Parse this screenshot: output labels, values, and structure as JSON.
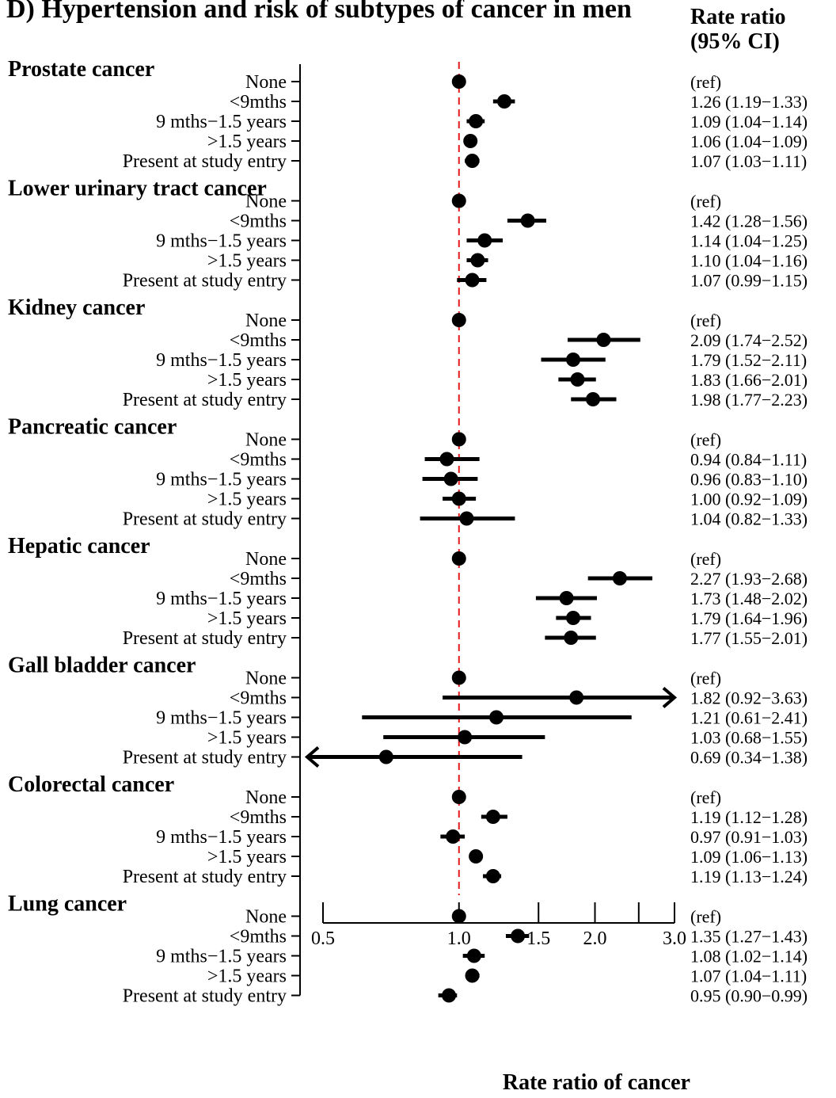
{
  "chart_data": {
    "type": "forest",
    "title": "D) Hypertension and risk of subtypes of cancer in men",
    "right_header": {
      "line1": "Rate ratio",
      "line2": "(95% CI)"
    },
    "xlabel": "Rate ratio of cancer",
    "x_scale": "log",
    "xlim": [
      0.5,
      3.0
    ],
    "xticks": [
      0.5,
      1.0,
      1.5,
      2.0,
      2.5,
      3.0
    ],
    "xtick_labels": [
      "0.5",
      "1.0",
      "1.5",
      "2.0",
      "",
      "3.0"
    ],
    "reference_line": 1.0,
    "reference_color": "#e41a1c",
    "groups": [
      {
        "name": "Prostate cancer",
        "rows": [
          {
            "label": "None",
            "estimate": 1.0,
            "lower": 1.0,
            "upper": 1.0,
            "text": "(ref)"
          },
          {
            "label": "<9mths",
            "estimate": 1.26,
            "lower": 1.19,
            "upper": 1.33,
            "text": "1.26 (1.19−1.33)"
          },
          {
            "label": "9 mths−1.5 years",
            "estimate": 1.09,
            "lower": 1.04,
            "upper": 1.14,
            "text": "1.09 (1.04−1.14)"
          },
          {
            "label": ">1.5 years",
            "estimate": 1.06,
            "lower": 1.04,
            "upper": 1.09,
            "text": "1.06 (1.04−1.09)"
          },
          {
            "label": "Present at study entry",
            "estimate": 1.07,
            "lower": 1.03,
            "upper": 1.11,
            "text": "1.07 (1.03−1.11)"
          }
        ]
      },
      {
        "name": "Lower urinary tract cancer",
        "rows": [
          {
            "label": "None",
            "estimate": 1.0,
            "lower": 1.0,
            "upper": 1.0,
            "text": "(ref)"
          },
          {
            "label": "<9mths",
            "estimate": 1.42,
            "lower": 1.28,
            "upper": 1.56,
            "text": "1.42 (1.28−1.56)"
          },
          {
            "label": "9 mths−1.5 years",
            "estimate": 1.14,
            "lower": 1.04,
            "upper": 1.25,
            "text": "1.14 (1.04−1.25)"
          },
          {
            "label": ">1.5 years",
            "estimate": 1.1,
            "lower": 1.04,
            "upper": 1.16,
            "text": "1.10 (1.04−1.16)"
          },
          {
            "label": "Present at study entry",
            "estimate": 1.07,
            "lower": 0.99,
            "upper": 1.15,
            "text": "1.07 (0.99−1.15)"
          }
        ]
      },
      {
        "name": "Kidney cancer",
        "rows": [
          {
            "label": "None",
            "estimate": 1.0,
            "lower": 1.0,
            "upper": 1.0,
            "text": "(ref)"
          },
          {
            "label": "<9mths",
            "estimate": 2.09,
            "lower": 1.74,
            "upper": 2.52,
            "text": "2.09 (1.74−2.52)"
          },
          {
            "label": "9 mths−1.5 years",
            "estimate": 1.79,
            "lower": 1.52,
            "upper": 2.11,
            "text": "1.79 (1.52−2.11)"
          },
          {
            "label": ">1.5 years",
            "estimate": 1.83,
            "lower": 1.66,
            "upper": 2.01,
            "text": "1.83 (1.66−2.01)"
          },
          {
            "label": "Present at study entry",
            "estimate": 1.98,
            "lower": 1.77,
            "upper": 2.23,
            "text": "1.98 (1.77−2.23)"
          }
        ]
      },
      {
        "name": "Pancreatic cancer",
        "rows": [
          {
            "label": "None",
            "estimate": 1.0,
            "lower": 1.0,
            "upper": 1.0,
            "text": "(ref)"
          },
          {
            "label": "<9mths",
            "estimate": 0.94,
            "lower": 0.84,
            "upper": 1.11,
            "text": "0.94 (0.84−1.11)"
          },
          {
            "label": "9 mths−1.5 years",
            "estimate": 0.96,
            "lower": 0.83,
            "upper": 1.1,
            "text": "0.96 (0.83−1.10)"
          },
          {
            "label": ">1.5 years",
            "estimate": 1.0,
            "lower": 0.92,
            "upper": 1.09,
            "text": "1.00 (0.92−1.09)"
          },
          {
            "label": "Present at study entry",
            "estimate": 1.04,
            "lower": 0.82,
            "upper": 1.33,
            "text": "1.04 (0.82−1.33)"
          }
        ]
      },
      {
        "name": "Hepatic cancer",
        "rows": [
          {
            "label": "None",
            "estimate": 1.0,
            "lower": 1.0,
            "upper": 1.0,
            "text": "(ref)"
          },
          {
            "label": "<9mths",
            "estimate": 2.27,
            "lower": 1.93,
            "upper": 2.68,
            "text": "2.27 (1.93−2.68)"
          },
          {
            "label": "9 mths−1.5 years",
            "estimate": 1.73,
            "lower": 1.48,
            "upper": 2.02,
            "text": "1.73 (1.48−2.02)"
          },
          {
            "label": ">1.5 years",
            "estimate": 1.79,
            "lower": 1.64,
            "upper": 1.96,
            "text": "1.79 (1.64−1.96)"
          },
          {
            "label": "Present at study entry",
            "estimate": 1.77,
            "lower": 1.55,
            "upper": 2.01,
            "text": "1.77 (1.55−2.01)"
          }
        ]
      },
      {
        "name": "Gall bladder cancer",
        "rows": [
          {
            "label": "None",
            "estimate": 1.0,
            "lower": 1.0,
            "upper": 1.0,
            "text": "(ref)"
          },
          {
            "label": "<9mths",
            "estimate": 1.82,
            "lower": 0.92,
            "upper": 3.63,
            "text": "1.82 (0.92−3.63)"
          },
          {
            "label": "9 mths−1.5 years",
            "estimate": 1.21,
            "lower": 0.61,
            "upper": 2.41,
            "text": "1.21 (0.61−2.41)"
          },
          {
            "label": ">1.5 years",
            "estimate": 1.03,
            "lower": 0.68,
            "upper": 1.55,
            "text": "1.03 (0.68−1.55)"
          },
          {
            "label": "Present at study entry",
            "estimate": 0.69,
            "lower": 0.34,
            "upper": 1.38,
            "text": "0.69 (0.34−1.38)"
          }
        ]
      },
      {
        "name": "Colorectal cancer",
        "rows": [
          {
            "label": "None",
            "estimate": 1.0,
            "lower": 1.0,
            "upper": 1.0,
            "text": "(ref)"
          },
          {
            "label": "<9mths",
            "estimate": 1.19,
            "lower": 1.12,
            "upper": 1.28,
            "text": "1.19 (1.12−1.28)"
          },
          {
            "label": "9 mths−1.5 years",
            "estimate": 0.97,
            "lower": 0.91,
            "upper": 1.03,
            "text": "0.97 (0.91−1.03)"
          },
          {
            "label": ">1.5 years",
            "estimate": 1.09,
            "lower": 1.06,
            "upper": 1.13,
            "text": "1.09 (1.06−1.13)"
          },
          {
            "label": "Present at study entry",
            "estimate": 1.19,
            "lower": 1.13,
            "upper": 1.24,
            "text": "1.19 (1.13−1.24)"
          }
        ]
      },
      {
        "name": "Lung cancer",
        "rows": [
          {
            "label": "None",
            "estimate": 1.0,
            "lower": 1.0,
            "upper": 1.0,
            "text": "(ref)"
          },
          {
            "label": "<9mths",
            "estimate": 1.35,
            "lower": 1.27,
            "upper": 1.43,
            "text": "1.35 (1.27−1.43)"
          },
          {
            "label": "9 mths−1.5 years",
            "estimate": 1.08,
            "lower": 1.02,
            "upper": 1.14,
            "text": "1.08 (1.02−1.14)"
          },
          {
            "label": ">1.5 years",
            "estimate": 1.07,
            "lower": 1.04,
            "upper": 1.11,
            "text": "1.07 (1.04−1.11)"
          },
          {
            "label": "Present at study entry",
            "estimate": 0.95,
            "lower": 0.9,
            "upper": 0.99,
            "text": "0.95 (0.90−0.99)"
          }
        ]
      }
    ]
  }
}
